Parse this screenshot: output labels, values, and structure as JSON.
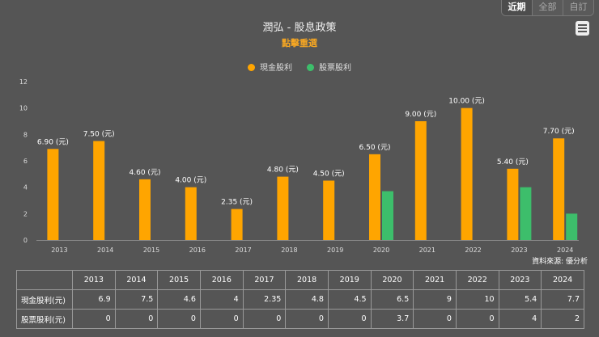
{
  "range_tabs": [
    "近期",
    "全部",
    "自訂"
  ],
  "title": "潤弘 - 股息政策",
  "subtitle": "點擊重選",
  "menu_icon": "hamburger-menu-icon",
  "source": "資料來源: 優分析",
  "chart_data": {
    "type": "bar",
    "categories": [
      "2013",
      "2014",
      "2015",
      "2016",
      "2017",
      "2018",
      "2019",
      "2020",
      "2021",
      "2022",
      "2023",
      "2024"
    ],
    "series": [
      {
        "name": "現金股利",
        "color": "#FFA500",
        "values": [
          6.9,
          7.5,
          4.6,
          4,
          2.35,
          4.8,
          4.5,
          6.5,
          9,
          10,
          5.4,
          7.7
        ],
        "data_labels": [
          "6.90 (元)",
          "7.50 (元)",
          "4.60 (元)",
          "4.00 (元)",
          "2.35 (元)",
          "4.80 (元)",
          "4.50 (元)",
          "6.50 (元)",
          "9.00 (元)",
          "10.00 (元)",
          "5.40 (元)",
          "7.70 (元)"
        ]
      },
      {
        "name": "股票股利",
        "color": "#3DBE6B",
        "values": [
          0,
          0,
          0,
          0,
          0,
          0,
          0,
          3.7,
          0,
          0,
          4,
          2
        ]
      }
    ],
    "ylim": [
      0,
      12
    ],
    "yticks": [
      "0",
      "2",
      "4",
      "6",
      "8",
      "10",
      "12"
    ],
    "legend": "top-center",
    "grid": false
  },
  "table": {
    "headers": [
      "",
      "2013",
      "2014",
      "2015",
      "2016",
      "2017",
      "2018",
      "2019",
      "2020",
      "2021",
      "2022",
      "2023",
      "2024"
    ],
    "rows": [
      [
        "現金股利(元)",
        "6.9",
        "7.5",
        "4.6",
        "4",
        "2.35",
        "4.8",
        "4.5",
        "6.5",
        "9",
        "10",
        "5.4",
        "7.7"
      ],
      [
        "股票股利(元)",
        "0",
        "0",
        "0",
        "0",
        "0",
        "0",
        "0",
        "3.7",
        "0",
        "0",
        "4",
        "2"
      ]
    ]
  }
}
